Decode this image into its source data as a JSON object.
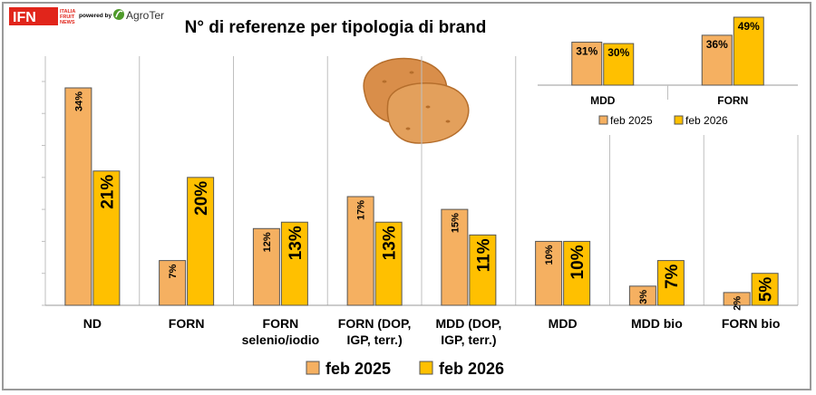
{
  "logos": {
    "ifn_main": "IFN",
    "ifn_sub": [
      "ITALIA",
      "FRUIT",
      "NEWS"
    ],
    "powered_by": "powered by",
    "agroter": "AgroTer"
  },
  "colors": {
    "feb2025": "#F5B061",
    "feb2026": "#FFC000",
    "ifn_red": "#E1251B",
    "agroter_green": "#4E9A2A"
  },
  "potato_icon": "potato-icon",
  "chart_data": [
    {
      "type": "bar",
      "title": "N° di referenze per tipologia di brand",
      "categories": [
        "ND",
        "FORN",
        "FORN\nselenio/iodio",
        "FORN (DOP,\nIGP, terr.)",
        "MDD (DOP,\nIGP, terr.)",
        "MDD",
        "MDD bio",
        "FORN bio"
      ],
      "series": [
        {
          "name": "feb 2025",
          "values": [
            34,
            7,
            12,
            17,
            15,
            10,
            3,
            2
          ],
          "labels": [
            "34%",
            "7%",
            "12%",
            "17%",
            "15%",
            "10%",
            "3%",
            "2%"
          ]
        },
        {
          "name": "feb 2026",
          "values": [
            21,
            20,
            13,
            13,
            11,
            10,
            7,
            5
          ],
          "labels": [
            "21%",
            "20%",
            "13%",
            "13%",
            "11%",
            "10%",
            "7%",
            "5%"
          ]
        }
      ],
      "ylim": [
        0,
        40
      ],
      "grid": false,
      "legend": "bottom"
    },
    {
      "type": "bar",
      "categories": [
        "MDD",
        "FORN"
      ],
      "series": [
        {
          "name": "feb 2025",
          "values": [
            31,
            36
          ],
          "labels": [
            "31%",
            "36%"
          ]
        },
        {
          "name": "feb 2026",
          "values": [
            30,
            49
          ],
          "labels": [
            "30%",
            "49%"
          ]
        }
      ],
      "ylim": [
        0,
        50
      ],
      "legend": "bottom"
    }
  ]
}
